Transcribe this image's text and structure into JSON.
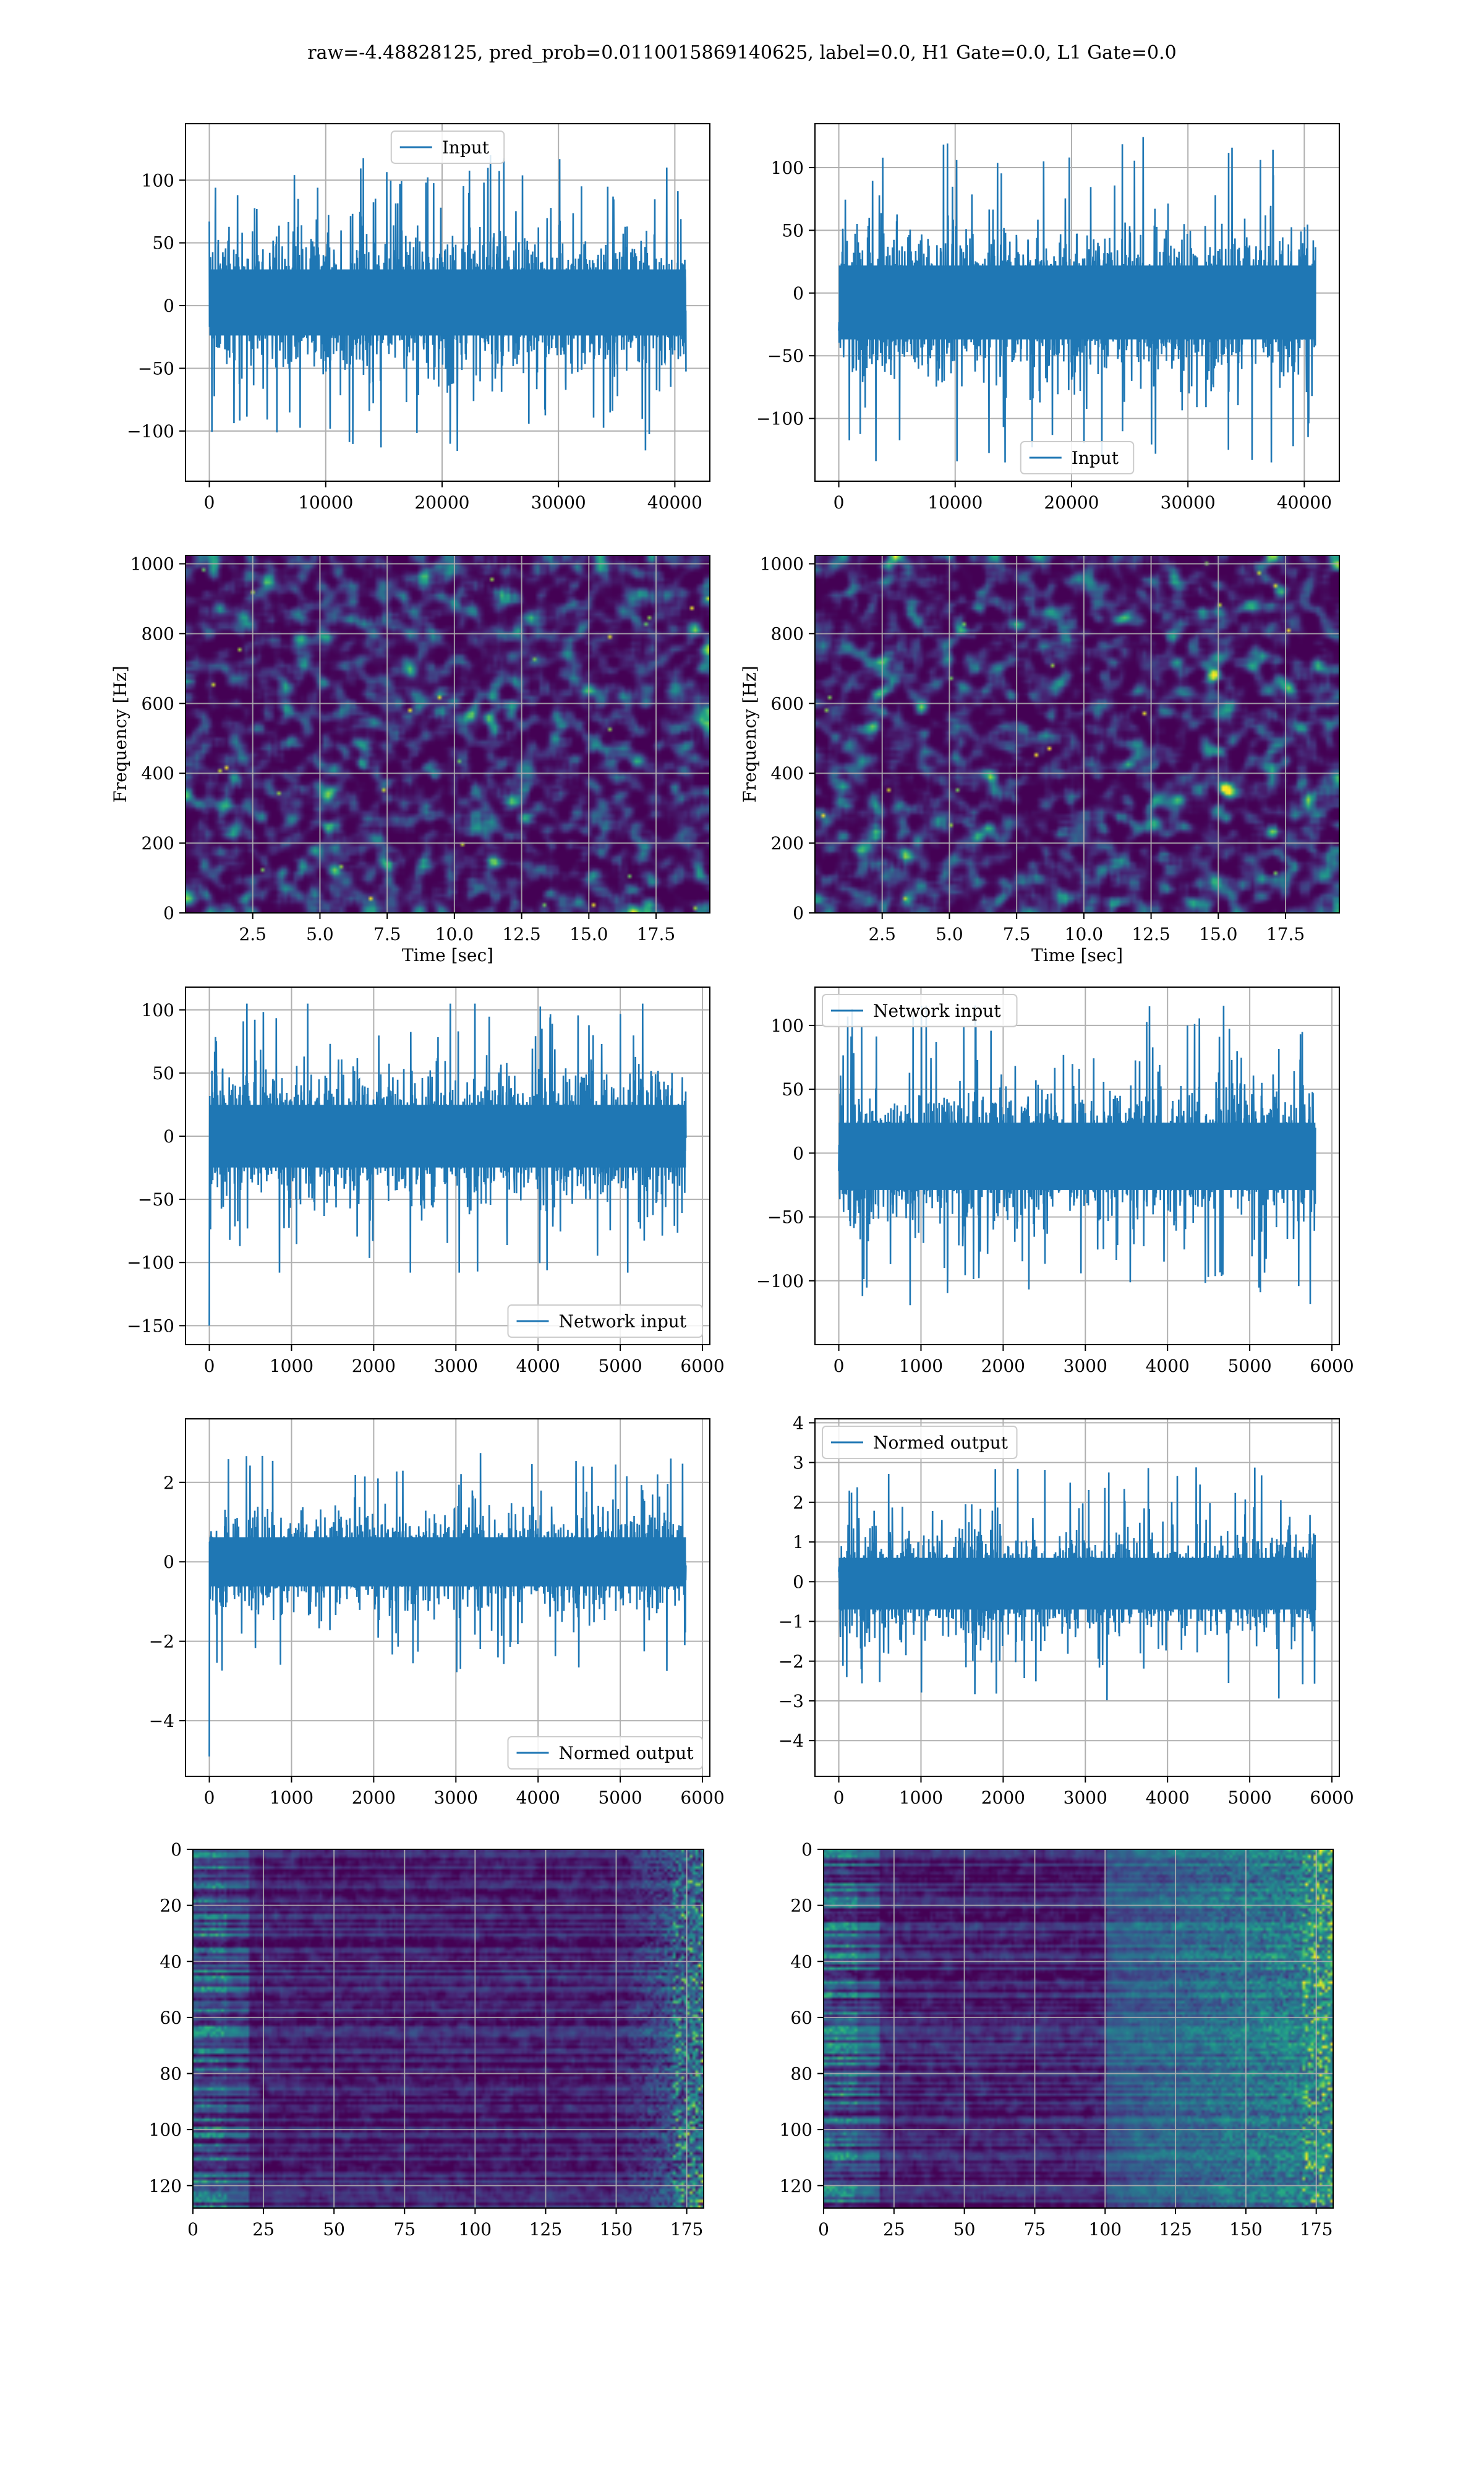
{
  "figure": {
    "title": "raw=-4.48828125, pred_prob=0.0110015869140625, label=0.0, H1 Gate=0.0, L1 Gate=0.0",
    "colors": {
      "line": "#1f77b4",
      "grid": "#b0b0b0",
      "frame": "#000000"
    },
    "colormap": "viridis"
  },
  "chart_data": [
    {
      "id": "h1-input",
      "type": "line",
      "series": [
        {
          "name": "Input",
          "style": "dense-noise",
          "n": 40960,
          "center": 0,
          "core_amplitude": [
            -40,
            45
          ],
          "peak_range": [
            -120,
            137
          ]
        }
      ],
      "xlim": [
        -2048,
        43008
      ],
      "ylim": [
        -140,
        145
      ],
      "xticks": [
        0,
        10000,
        20000,
        30000,
        40000
      ],
      "xtick_labels": [
        "0",
        "10000",
        "20000",
        "30000",
        "40000"
      ],
      "yticks": [
        -100,
        -50,
        0,
        50,
        100
      ],
      "ytick_labels": [
        "−100",
        "−50",
        "0",
        "50",
        "100"
      ],
      "legend": {
        "position": "upper-center",
        "labels": [
          "Input"
        ]
      },
      "grid": true
    },
    {
      "id": "l1-input",
      "type": "line",
      "series": [
        {
          "name": "Input",
          "style": "dense-noise",
          "n": 40960,
          "center": 0,
          "core_amplitude": [
            -55,
            40
          ],
          "peak_range": [
            -135,
            125
          ]
        }
      ],
      "xlim": [
        -2048,
        43008
      ],
      "ylim": [
        -150,
        135
      ],
      "xticks": [
        0,
        10000,
        20000,
        30000,
        40000
      ],
      "xtick_labels": [
        "0",
        "10000",
        "20000",
        "30000",
        "40000"
      ],
      "yticks": [
        -100,
        -50,
        0,
        50,
        100
      ],
      "ytick_labels": [
        "−100",
        "−50",
        "0",
        "50",
        "100"
      ],
      "legend": {
        "position": "lower-center",
        "labels": [
          "Input"
        ]
      },
      "grid": true
    },
    {
      "id": "h1-spectrogram",
      "type": "heatmap",
      "style": "noise-spectrogram",
      "xlim": [
        0,
        19.5
      ],
      "ylim": [
        0,
        1024
      ],
      "xticks": [
        2.5,
        5.0,
        7.5,
        10.0,
        12.5,
        15.0,
        17.5
      ],
      "xtick_labels": [
        "2.5",
        "5.0",
        "7.5",
        "10.0",
        "12.5",
        "15.0",
        "17.5"
      ],
      "yticks": [
        0,
        200,
        400,
        600,
        800,
        1000
      ],
      "ytick_labels": [
        "0",
        "200",
        "400",
        "600",
        "800",
        "1000"
      ],
      "xlabel": "Time [sec]",
      "ylabel": "Frequency [Hz]",
      "grid": true
    },
    {
      "id": "l1-spectrogram",
      "type": "heatmap",
      "style": "noise-spectrogram",
      "xlim": [
        0,
        19.5
      ],
      "ylim": [
        0,
        1024
      ],
      "xticks": [
        2.5,
        5.0,
        7.5,
        10.0,
        12.5,
        15.0,
        17.5
      ],
      "xtick_labels": [
        "2.5",
        "5.0",
        "7.5",
        "10.0",
        "12.5",
        "15.0",
        "17.5"
      ],
      "yticks": [
        0,
        200,
        400,
        600,
        800,
        1000
      ],
      "ytick_labels": [
        "0",
        "200",
        "400",
        "600",
        "800",
        "1000"
      ],
      "xlabel": "Time [sec]",
      "ylabel": "Frequency [Hz]",
      "grid": true
    },
    {
      "id": "h1-network-input",
      "type": "line",
      "series": [
        {
          "name": "Network input",
          "style": "dense-noise",
          "n": 5800,
          "center": 0,
          "core_amplitude": [
            -40,
            40
          ],
          "peak_range": [
            -108,
            105
          ],
          "first_value": -150
        }
      ],
      "xlim": [
        -290,
        6090
      ],
      "ylim": [
        -165,
        118
      ],
      "xticks": [
        0,
        1000,
        2000,
        3000,
        4000,
        5000,
        6000
      ],
      "xtick_labels": [
        "0",
        "1000",
        "2000",
        "3000",
        "4000",
        "5000",
        "6000"
      ],
      "yticks": [
        -150,
        -100,
        -50,
        0,
        50,
        100
      ],
      "ytick_labels": [
        "−150",
        "−100",
        "−50",
        "0",
        "50",
        "100"
      ],
      "legend": {
        "position": "lower-right",
        "labels": [
          "Network input"
        ]
      },
      "grid": true
    },
    {
      "id": "l1-network-input",
      "type": "line",
      "series": [
        {
          "name": "Network input",
          "style": "dense-noise",
          "n": 5800,
          "center": 0,
          "core_amplitude": [
            -45,
            40
          ],
          "peak_range": [
            -135,
            117
          ]
        }
      ],
      "xlim": [
        -290,
        6090
      ],
      "ylim": [
        -150,
        130
      ],
      "xticks": [
        0,
        1000,
        2000,
        3000,
        4000,
        5000,
        6000
      ],
      "xtick_labels": [
        "0",
        "1000",
        "2000",
        "3000",
        "4000",
        "5000",
        "6000"
      ],
      "yticks": [
        -100,
        -50,
        0,
        50,
        100
      ],
      "ytick_labels": [
        "−100",
        "−50",
        "0",
        "50",
        "100"
      ],
      "legend": {
        "position": "upper-left",
        "labels": [
          "Network input"
        ]
      },
      "grid": true
    },
    {
      "id": "h1-normed-output",
      "type": "line",
      "series": [
        {
          "name": "Normed output",
          "style": "dense-noise",
          "n": 5800,
          "center": 0,
          "core_amplitude": [
            -1.0,
            1.0
          ],
          "peak_range": [
            -3.5,
            3.4
          ],
          "first_value": -4.9
        }
      ],
      "xlim": [
        -290,
        6090
      ],
      "ylim": [
        -5.4,
        3.6
      ],
      "xticks": [
        0,
        1000,
        2000,
        3000,
        4000,
        5000,
        6000
      ],
      "xtick_labels": [
        "0",
        "1000",
        "2000",
        "3000",
        "4000",
        "5000",
        "6000"
      ],
      "yticks": [
        -4,
        -2,
        0,
        2
      ],
      "ytick_labels": [
        "−4",
        "−2",
        "0",
        "2"
      ],
      "legend": {
        "position": "lower-right",
        "labels": [
          "Normed output"
        ]
      },
      "grid": true
    },
    {
      "id": "l1-normed-output",
      "type": "line",
      "series": [
        {
          "name": "Normed output",
          "style": "dense-noise",
          "n": 5800,
          "center": 0,
          "core_amplitude": [
            -1.1,
            1.0
          ],
          "peak_range": [
            -4.4,
            3.8
          ]
        }
      ],
      "xlim": [
        -290,
        6090
      ],
      "ylim": [
        -4.9,
        4.1
      ],
      "xticks": [
        0,
        1000,
        2000,
        3000,
        4000,
        5000,
        6000
      ],
      "xtick_labels": [
        "0",
        "1000",
        "2000",
        "3000",
        "4000",
        "5000",
        "6000"
      ],
      "yticks": [
        -4,
        -3,
        -2,
        -1,
        0,
        1,
        2,
        3,
        4
      ],
      "ytick_labels": [
        "−4",
        "−3",
        "−2",
        "−1",
        "0",
        "1",
        "2",
        "3",
        "4"
      ],
      "legend": {
        "position": "upper-left",
        "labels": [
          "Normed output"
        ]
      },
      "grid": true
    },
    {
      "id": "h1-feature-map",
      "type": "heatmap",
      "style": "feature-map",
      "rows": 128,
      "cols": 182,
      "xlim": [
        0,
        181
      ],
      "ylim": [
        128,
        0
      ],
      "xticks": [
        0,
        25,
        50,
        75,
        100,
        125,
        150,
        175
      ],
      "xtick_labels": [
        "0",
        "25",
        "50",
        "75",
        "100",
        "125",
        "150",
        "175"
      ],
      "yticks": [
        0,
        20,
        40,
        60,
        80,
        100,
        120
      ],
      "ytick_labels": [
        "0",
        "20",
        "40",
        "60",
        "80",
        "100",
        "120"
      ],
      "grid": true
    },
    {
      "id": "l1-feature-map",
      "type": "heatmap",
      "style": "feature-map",
      "rows": 128,
      "cols": 182,
      "xlim": [
        0,
        181
      ],
      "ylim": [
        128,
        0
      ],
      "xticks": [
        0,
        25,
        50,
        75,
        100,
        125,
        150,
        175
      ],
      "xtick_labels": [
        "0",
        "25",
        "50",
        "75",
        "100",
        "125",
        "150",
        "175"
      ],
      "yticks": [
        0,
        20,
        40,
        60,
        80,
        100,
        120
      ],
      "ytick_labels": [
        "0",
        "20",
        "40",
        "60",
        "80",
        "100",
        "120"
      ],
      "grid": true
    }
  ]
}
